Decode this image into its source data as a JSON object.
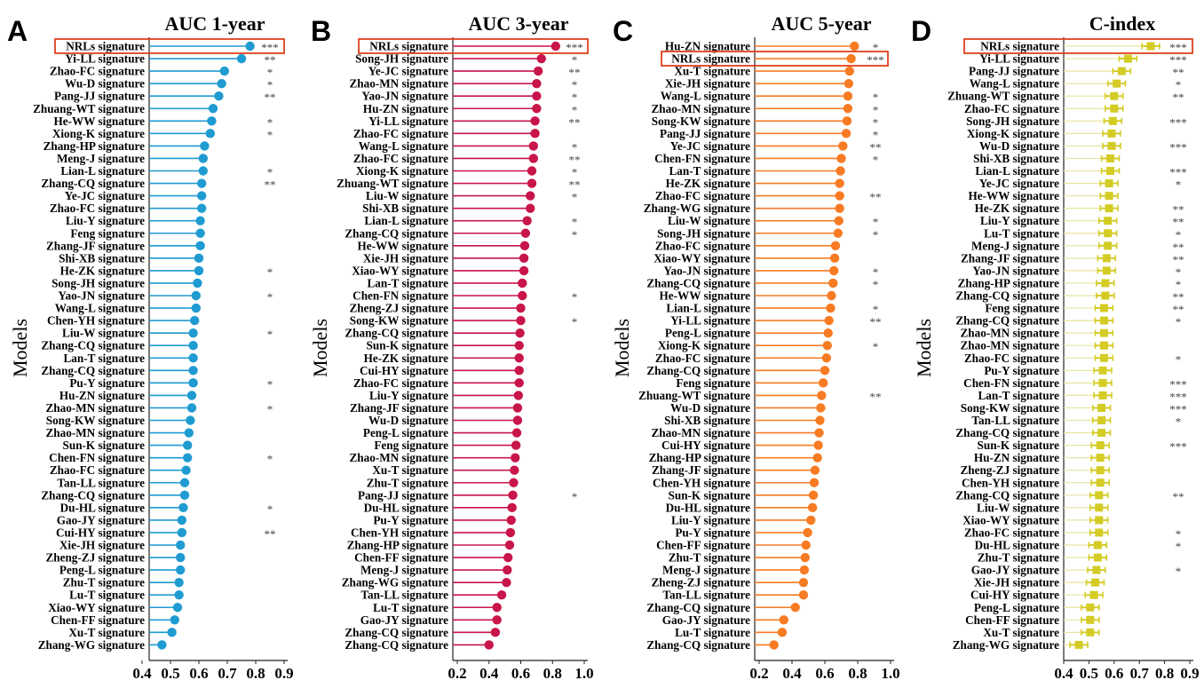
{
  "chart_data": [
    {
      "panel": "A",
      "title": "AUC  1-year",
      "type": "lollipop",
      "ylabel": "Models",
      "color": "#1f9bd1",
      "xlim": [
        0.4,
        0.9
      ],
      "xticks": [
        "0.4",
        "0.5",
        "0.6",
        "0.7",
        "0.8",
        "0.9"
      ],
      "highlight": [
        "NRLs signature"
      ],
      "labels": [
        "NRLs signature",
        "Yi-LL signature",
        "Zhao-FC signature",
        "Wu-D signature",
        "Pang-JJ signature",
        "Zhuang-WT signature",
        "He-WW signature",
        "Xiong-K signature",
        "Zhang-HP signature",
        "Meng-J signature",
        "Lian-L signature",
        "Zhang-CQ signature",
        "Ye-JC signature",
        "Zhao-FC signature",
        "Liu-Y signature",
        "Feng signature",
        "Zhang-JF signature",
        "Shi-XB signature",
        "He-ZK signature",
        "Song-JH signature",
        "Yao-JN signature",
        "Wang-L signature",
        "Chen-YH signature",
        "Liu-W signature",
        "Zhang-CQ signature",
        "Lan-T signature",
        "Zhang-CQ signature",
        "Pu-Y signature",
        "Hu-ZN signature",
        "Zhao-MN signature",
        "Song-KW signature",
        "Zhao-MN signature",
        "Sun-K signature",
        "Chen-FN signature",
        "Zhao-FC signature",
        "Tan-LL signature",
        "Zhang-CQ signature",
        "Du-HL signature",
        "Gao-JY signature",
        "Cui-HY signature",
        "Xie-JH signature",
        "Zheng-ZJ signature",
        "Peng-L signature",
        "Zhu-T signature",
        "Lu-T signature",
        "Xiao-WY signature",
        "Chen-FF signature",
        "Xu-T signature",
        "Zhang-WG signature"
      ],
      "values": [
        0.78,
        0.75,
        0.69,
        0.68,
        0.67,
        0.65,
        0.645,
        0.64,
        0.62,
        0.615,
        0.615,
        0.61,
        0.61,
        0.61,
        0.605,
        0.605,
        0.605,
        0.6,
        0.6,
        0.595,
        0.59,
        0.59,
        0.585,
        0.58,
        0.58,
        0.58,
        0.58,
        0.58,
        0.575,
        0.575,
        0.57,
        0.565,
        0.56,
        0.56,
        0.555,
        0.55,
        0.55,
        0.545,
        0.54,
        0.54,
        0.535,
        0.535,
        0.535,
        0.53,
        0.53,
        0.525,
        0.515,
        0.505,
        0.47
      ],
      "significance": [
        "***",
        "**",
        "*",
        "*",
        "**",
        "",
        "*",
        "*",
        "",
        "",
        "*",
        "**",
        "",
        "",
        "",
        "",
        "",
        "",
        "*",
        "",
        "*",
        "",
        "",
        "*",
        "",
        "",
        "",
        "*",
        "",
        "*",
        "",
        "",
        "",
        "*",
        "",
        "",
        "",
        "*",
        "",
        "**",
        "",
        "",
        "",
        "",
        "",
        "",
        "",
        "",
        ""
      ]
    },
    {
      "panel": "B",
      "title": "AUC  3-year",
      "type": "lollipop",
      "ylabel": "Models",
      "color": "#c8154a",
      "xlim": [
        0.2,
        1.0
      ],
      "xticks": [
        "0.2",
        "0.4",
        "0.6",
        "0.8",
        "1.0"
      ],
      "highlight": [
        "NRLs signature"
      ],
      "labels": [
        "NRLs signature",
        "Song-JH signature",
        "Ye-JC signature",
        "Zhao-MN signature",
        "Yao-JN signature",
        "Hu-ZN signature",
        "Yi-LL signature",
        "Zhao-FC signature",
        "Wang-L signature",
        "Zhao-FC signature",
        "Xiong-K signature",
        "Zhuang-WT signature",
        "Liu-W signature",
        "Shi-XB signature",
        "Lian-L signature",
        "Zhang-CQ signature",
        "He-WW signature",
        "Xie-JH signature",
        "Xiao-WY signature",
        "Lan-T signature",
        "Chen-FN signature",
        "Zheng-ZJ signature",
        "Song-KW signature",
        "Zhang-CQ signature",
        "Sun-K signature",
        "He-ZK signature",
        "Cui-HY signature",
        "Zhao-FC signature",
        "Liu-Y signature",
        "Zhang-JF signature",
        "Wu-D signature",
        "Peng-L signature",
        "Feng signature",
        "Zhao-MN signature",
        "Xu-T signature",
        "Zhu-T signature",
        "Pang-JJ signature",
        "Du-HL signature",
        "Pu-Y signature",
        "Chen-YH signature",
        "Zhang-HP signature",
        "Chen-FF signature",
        "Meng-J signature",
        "Zhang-WG signature",
        "Tan-LL signature",
        "Lu-T signature",
        "Gao-JY signature",
        "Zhang-CQ signature",
        "Zhang-CQ signature"
      ],
      "values": [
        0.82,
        0.73,
        0.71,
        0.7,
        0.7,
        0.7,
        0.69,
        0.69,
        0.68,
        0.68,
        0.67,
        0.67,
        0.66,
        0.66,
        0.64,
        0.63,
        0.625,
        0.62,
        0.62,
        0.61,
        0.61,
        0.6,
        0.6,
        0.595,
        0.59,
        0.59,
        0.59,
        0.59,
        0.585,
        0.58,
        0.58,
        0.575,
        0.57,
        0.565,
        0.56,
        0.555,
        0.55,
        0.545,
        0.54,
        0.535,
        0.53,
        0.52,
        0.515,
        0.51,
        0.48,
        0.45,
        0.45,
        0.44,
        0.4
      ],
      "significance": [
        "***",
        "*",
        "**",
        "*",
        "*",
        "*",
        "**",
        "",
        "*",
        "**",
        "*",
        "**",
        "*",
        "",
        "*",
        "*",
        "",
        "",
        "",
        "",
        "*",
        "",
        "*",
        "",
        "",
        "",
        "",
        "",
        "",
        "",
        "",
        "",
        "",
        "",
        "",
        "",
        "*",
        "",
        "",
        "",
        "",
        "",
        "",
        "",
        "",
        "",
        "",
        "",
        ""
      ]
    },
    {
      "panel": "C",
      "title": "AUC  5-year",
      "type": "lollipop",
      "ylabel": "Models",
      "color": "#f77b23",
      "xlim": [
        0.2,
        1.0
      ],
      "xticks": [
        "0.2",
        "0.4",
        "0.6",
        "0.8",
        "1.0"
      ],
      "highlight": [
        "NRLs signature"
      ],
      "labels": [
        "Hu-ZN signature",
        "NRLs signature",
        "Xu-T signature",
        "Xie-JH signature",
        "Wang-L signature",
        "Zhao-MN signature",
        "Song-KW signature",
        "Pang-JJ signature",
        "Ye-JC signature",
        "Chen-FN signature",
        "Lan-T signature",
        "He-ZK signature",
        "Zhao-FC signature",
        "Zhang-WG signature",
        "Liu-W signature",
        "Song-JH signature",
        "Zhao-FC signature",
        "Xiao-WY signature",
        "Yao-JN signature",
        "Zhang-CQ signature",
        "He-WW signature",
        "Lian-L signature",
        "Yi-LL signature",
        "Peng-L signature",
        "Xiong-K signature",
        "Zhao-FC signature",
        "Zhang-CQ signature",
        "Feng signature",
        "Zhuang-WT signature",
        "Wu-D signature",
        "Shi-XB signature",
        "Zhao-MN signature",
        "Cui-HY signature",
        "Zhang-HP signature",
        "Zhang-JF signature",
        "Chen-YH signature",
        "Sun-K signature",
        "Du-HL signature",
        "Liu-Y signature",
        "Pu-Y signature",
        "Chen-FF signature",
        "Zhu-T signature",
        "Meng-J signature",
        "Zheng-ZJ signature",
        "Tan-LL signature",
        "Zhang-CQ signature",
        "Gao-JY signature",
        "Lu-T signature",
        "Zhang-CQ signature"
      ],
      "values": [
        0.78,
        0.76,
        0.75,
        0.745,
        0.74,
        0.74,
        0.735,
        0.73,
        0.71,
        0.7,
        0.695,
        0.69,
        0.69,
        0.69,
        0.685,
        0.68,
        0.665,
        0.66,
        0.655,
        0.65,
        0.64,
        0.635,
        0.625,
        0.62,
        0.615,
        0.61,
        0.6,
        0.59,
        0.58,
        0.575,
        0.57,
        0.565,
        0.56,
        0.555,
        0.54,
        0.535,
        0.53,
        0.525,
        0.515,
        0.495,
        0.485,
        0.48,
        0.475,
        0.47,
        0.47,
        0.42,
        0.35,
        0.34,
        0.29
      ],
      "significance": [
        "*",
        "***",
        "",
        "",
        "*",
        "*",
        "*",
        "*",
        "**",
        "*",
        "",
        "",
        "**",
        "",
        "*",
        "*",
        "",
        "",
        "*",
        "*",
        "",
        "*",
        "**",
        "",
        "*",
        "",
        "",
        "",
        "**",
        "",
        "",
        "",
        "",
        "",
        "",
        "",
        "",
        "",
        "",
        "",
        "",
        "",
        "",
        "",
        "",
        "",
        "",
        "",
        ""
      ]
    },
    {
      "panel": "D",
      "title": "C-index",
      "type": "point-errorbar",
      "ylabel": "Models",
      "color": "#d4cc25",
      "xlim": [
        0.4,
        0.9
      ],
      "xticks": [
        "0.4",
        "0.5",
        "0.6",
        "0.7",
        "0.8",
        "0.9"
      ],
      "highlight": [
        "NRLs signature"
      ],
      "labels": [
        "NRLs signature",
        "Yi-LL signature",
        "Pang-JJ signature",
        "Wang-L signature",
        "Zhuang-WT signature",
        "Zhao-FC signature",
        "Song-JH signature",
        "Xiong-K signature",
        "Wu-D signature",
        "Shi-XB signature",
        "Lian-L signature",
        "Ye-JC signature",
        "He-WW signature",
        "He-ZK signature",
        "Liu-Y signature",
        "Lu-T signature",
        "Meng-J signature",
        "Zhang-JF signature",
        "Yao-JN signature",
        "Zhang-HP signature",
        "Zhang-CQ signature",
        "Feng signature",
        "Zhang-CQ signature",
        "Zhao-MN signature",
        "Zhao-MN signature",
        "Zhao-FC signature",
        "Pu-Y signature",
        "Chen-FN signature",
        "Lan-T signature",
        "Song-KW signature",
        "Tan-LL signature",
        "Zhang-CQ signature",
        "Sun-K signature",
        "Hu-ZN signature",
        "Zheng-ZJ signature",
        "Chen-YH signature",
        "Zhang-CQ signature",
        "Liu-W signature",
        "Xiao-WY signature",
        "Zhao-FC signature",
        "Du-HL signature",
        "Zhu-T signature",
        "Gao-JY signature",
        "Xie-JH signature",
        "Cui-HY signature",
        "Peng-L signature",
        "Chen-FF signature",
        "Xu-T signature",
        "Zhang-WG signature"
      ],
      "values": [
        0.745,
        0.655,
        0.63,
        0.61,
        0.6,
        0.6,
        0.595,
        0.59,
        0.59,
        0.585,
        0.585,
        0.58,
        0.58,
        0.58,
        0.575,
        0.575,
        0.575,
        0.57,
        0.57,
        0.565,
        0.565,
        0.56,
        0.56,
        0.56,
        0.56,
        0.56,
        0.555,
        0.555,
        0.555,
        0.55,
        0.55,
        0.55,
        0.545,
        0.545,
        0.545,
        0.545,
        0.54,
        0.54,
        0.54,
        0.54,
        0.535,
        0.535,
        0.53,
        0.525,
        0.52,
        0.505,
        0.505,
        0.505,
        0.46
      ],
      "lower": [
        0.71,
        0.62,
        0.595,
        0.575,
        0.565,
        0.565,
        0.56,
        0.555,
        0.555,
        0.55,
        0.55,
        0.545,
        0.545,
        0.545,
        0.54,
        0.54,
        0.54,
        0.535,
        0.535,
        0.53,
        0.53,
        0.525,
        0.525,
        0.525,
        0.525,
        0.525,
        0.52,
        0.52,
        0.52,
        0.515,
        0.515,
        0.515,
        0.51,
        0.51,
        0.51,
        0.51,
        0.505,
        0.505,
        0.505,
        0.505,
        0.5,
        0.5,
        0.495,
        0.49,
        0.485,
        0.47,
        0.47,
        0.47,
        0.425
      ],
      "upper": [
        0.78,
        0.69,
        0.665,
        0.645,
        0.635,
        0.635,
        0.63,
        0.625,
        0.625,
        0.62,
        0.62,
        0.615,
        0.615,
        0.615,
        0.61,
        0.61,
        0.61,
        0.605,
        0.605,
        0.6,
        0.6,
        0.595,
        0.595,
        0.595,
        0.595,
        0.595,
        0.59,
        0.59,
        0.59,
        0.585,
        0.585,
        0.585,
        0.58,
        0.58,
        0.58,
        0.58,
        0.575,
        0.575,
        0.575,
        0.575,
        0.57,
        0.57,
        0.565,
        0.56,
        0.555,
        0.54,
        0.54,
        0.54,
        0.495
      ],
      "significance": [
        "***",
        "***",
        "**",
        "*",
        "**",
        "",
        "***",
        "",
        "***",
        "",
        "***",
        "*",
        "",
        "**",
        "**",
        "*",
        "**",
        "**",
        "*",
        "*",
        "**",
        "**",
        "*",
        "",
        "",
        "*",
        "",
        "***",
        "***",
        "***",
        "*",
        "",
        "***",
        "",
        "",
        "",
        "**",
        "",
        "",
        "*",
        "*",
        "",
        "*",
        "",
        "",
        "",
        "",
        "",
        ""
      ]
    }
  ]
}
